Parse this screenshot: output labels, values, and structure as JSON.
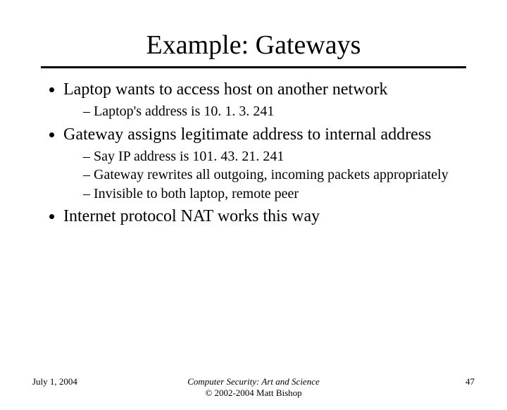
{
  "title": "Example: Gateways",
  "bullets": {
    "b1": "Laptop wants to access host on another network",
    "b1_sub1": "Laptop's address is 10. 1. 3. 241",
    "b2": "Gateway assigns legitimate address to internal address",
    "b2_sub1": "Say IP address is 101. 43. 21. 241",
    "b2_sub2": "Gateway rewrites all outgoing, incoming packets appropriately",
    "b2_sub3": "Invisible to both laptop, remote peer",
    "b3": "Internet protocol NAT works this way"
  },
  "footer": {
    "date": "July 1, 2004",
    "center_line1": "Computer Security: Art and Science",
    "center_line2": "© 2002-2004 Matt Bishop",
    "page": "47"
  },
  "colors": {
    "background": "#ffffff",
    "text": "#000000",
    "rule": "#000000"
  },
  "typography": {
    "title_fontsize": 38,
    "level1_fontsize": 24,
    "level2_fontsize": 20,
    "footer_fontsize": 13,
    "font_family": "Times New Roman"
  }
}
